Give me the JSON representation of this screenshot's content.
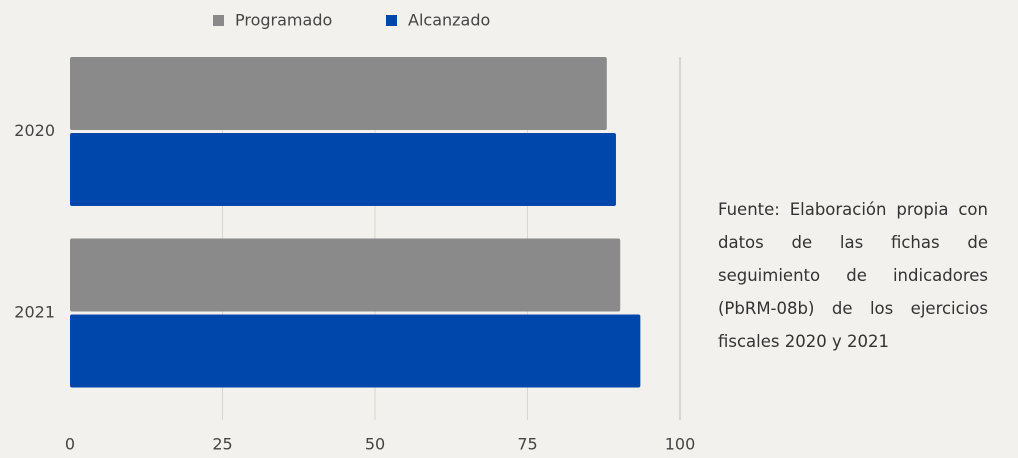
{
  "chart_data": {
    "type": "bar",
    "orientation": "horizontal",
    "categories": [
      "2020",
      "2021"
    ],
    "series": [
      {
        "name": "Programado",
        "color": "#8a8a8a",
        "values": [
          88,
          90.2
        ]
      },
      {
        "name": "Alcanzado",
        "color": "#0047ab",
        "values": [
          89.5,
          93.5
        ]
      }
    ],
    "xlim": [
      0,
      100
    ],
    "xticks": [
      0,
      25,
      50,
      75,
      100
    ],
    "grid": true,
    "legend": "top",
    "note": "Fuente: Elaboración propia con datos de las fichas de seguimiento de indicadores (PbRM-08b) de los ejercicios fiscales 2020 y 2021"
  }
}
